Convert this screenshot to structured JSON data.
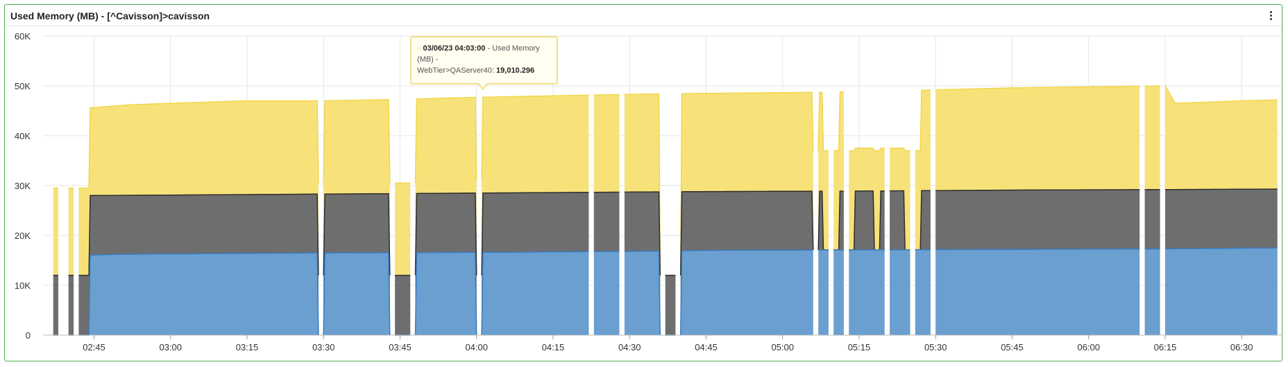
{
  "panel": {
    "title": "Used Memory (MB) - [^Cavisson]>cavisson",
    "menu_icon": "vertical-ellipsis-icon"
  },
  "tooltip": {
    "timestamp": "03/06/23 04:03:00",
    "label_part1": " - Used Memory (MB) -",
    "label_part2": "WebTier>QAServer40: ",
    "value": "19,010.296",
    "color": "#f5d642"
  },
  "chart_data": {
    "type": "area",
    "stacked": true,
    "title": "Used Memory (MB) - [^Cavisson]>cavisson",
    "xlabel": "",
    "ylabel": "",
    "ylim": [
      0,
      60000
    ],
    "yticks": [
      0,
      10000,
      20000,
      30000,
      40000,
      50000,
      60000
    ],
    "ytick_labels": [
      "0",
      "10K",
      "20K",
      "30K",
      "40K",
      "50K",
      "60K"
    ],
    "x_range_minutes": [
      "02:35",
      "06:38"
    ],
    "xtick_labels": [
      "02:45",
      "03:00",
      "03:15",
      "03:30",
      "03:45",
      "04:00",
      "04:15",
      "04:30",
      "04:45",
      "05:00",
      "05:15",
      "05:30",
      "05:45",
      "06:00",
      "06:15",
      "06:30"
    ],
    "grid": true,
    "legend": "none",
    "series": [
      {
        "color": "#6a9fd0",
        "line_color": "#3a7cc0",
        "points": [
          [
            "02:37",
            0
          ],
          [
            "02:43",
            16000
          ],
          [
            "02:49",
            16200
          ],
          [
            "03:00",
            16300
          ],
          [
            "03:30",
            16500
          ],
          [
            "04:00",
            16600
          ],
          [
            "04:30",
            16800
          ],
          [
            "04:45",
            17000
          ],
          [
            "05:15",
            17100
          ],
          [
            "05:45",
            17200
          ],
          [
            "06:15",
            17300
          ],
          [
            "06:37",
            17500
          ]
        ]
      },
      {
        "color": "#6e6e6e",
        "line_color": "#2e2e2e",
        "points": [
          [
            "02:37",
            12000
          ],
          [
            "02:43",
            28000
          ],
          [
            "03:00",
            28100
          ],
          [
            "03:30",
            28300
          ],
          [
            "04:00",
            28500
          ],
          [
            "04:30",
            28700
          ],
          [
            "04:45",
            28800
          ],
          [
            "05:15",
            28900
          ],
          [
            "05:45",
            29100
          ],
          [
            "06:15",
            29200
          ],
          [
            "06:37",
            29300
          ]
        ]
      },
      {
        "color": "#f7e27a",
        "line_color": "#f2d64a",
        "points": [
          [
            "02:37",
            29500
          ],
          [
            "02:43",
            45500
          ],
          [
            "02:52",
            46200
          ],
          [
            "03:00",
            46500
          ],
          [
            "03:15",
            47000
          ],
          [
            "03:30",
            47000
          ],
          [
            "03:45",
            47300
          ],
          [
            "04:00",
            47700
          ],
          [
            "04:15",
            48000
          ],
          [
            "04:30",
            48300
          ],
          [
            "04:45",
            48500
          ],
          [
            "05:06",
            48700
          ],
          [
            "05:15",
            48800
          ],
          [
            "05:30",
            49200
          ],
          [
            "05:45",
            49600
          ],
          [
            "06:00",
            49800
          ],
          [
            "06:15",
            50000
          ],
          [
            "06:17",
            46500
          ],
          [
            "06:30",
            47000
          ],
          [
            "06:37",
            47200
          ]
        ]
      }
    ],
    "gaps": [
      [
        "02:38",
        "02:40"
      ],
      [
        "02:41",
        "02:42"
      ],
      [
        "03:29",
        "03:30"
      ],
      [
        "03:43",
        "03:44"
      ],
      [
        "03:47",
        "03:48"
      ],
      [
        "04:00",
        "04:01"
      ],
      [
        "04:22",
        "04:23"
      ],
      [
        "04:28",
        "04:29"
      ],
      [
        "04:36",
        "04:37"
      ],
      [
        "04:39",
        "04:40"
      ],
      [
        "05:06",
        "05:07"
      ],
      [
        "05:09",
        "05:10"
      ],
      [
        "05:12",
        "05:13"
      ],
      [
        "05:20",
        "05:21"
      ],
      [
        "05:25",
        "05:26"
      ],
      [
        "05:29",
        "05:30"
      ],
      [
        "06:10",
        "06:11"
      ],
      [
        "06:14",
        "06:15"
      ]
    ],
    "dips": [
      {
        "range": [
          "05:06",
          "05:27"
        ],
        "yellow_top": 37000,
        "blue_top": 17100,
        "dark_top": 17100
      },
      {
        "range": [
          "02:37",
          "02:44"
        ],
        "yellow_top": 29500,
        "blue_top": 0,
        "dark_top": 12000
      },
      {
        "range": [
          "03:29",
          "03:30"
        ],
        "yellow_top": 30500,
        "blue_top": 0,
        "dark_top": 12000
      },
      {
        "range": [
          "03:43",
          "03:48"
        ],
        "yellow_top": 30500,
        "blue_top": 0,
        "dark_top": 12000
      },
      {
        "range": [
          "04:00",
          "04:01"
        ],
        "yellow_top": 31000,
        "blue_top": 0,
        "dark_top": 12000
      },
      {
        "range": [
          "04:36",
          "04:40"
        ],
        "yellow_top": 12000,
        "blue_top": 0,
        "dark_top": 12000
      }
    ]
  }
}
